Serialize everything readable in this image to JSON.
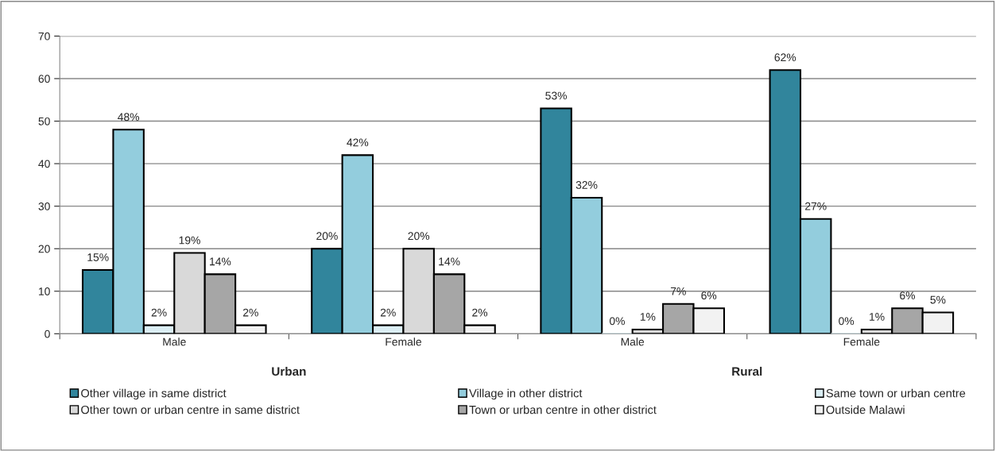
{
  "chart_data": {
    "type": "bar",
    "categories": [
      "Male",
      "Female",
      "Male",
      "Female"
    ],
    "annotations": [
      "Urban",
      "Rural"
    ],
    "series": [
      {
        "name": "Other village in same district",
        "color": "#31859c",
        "values": [
          15,
          20,
          53,
          62
        ],
        "value_labels": [
          "15%",
          "20%",
          "53%",
          "62%"
        ]
      },
      {
        "name": "Village in other district",
        "color": "#93cddd",
        "values": [
          48,
          42,
          32,
          27
        ],
        "value_labels": [
          "48%",
          "42%",
          "32%",
          "27%"
        ]
      },
      {
        "name": "Same town or urban centre",
        "color": "#dbeef4",
        "values": [
          2,
          2,
          0,
          0
        ],
        "value_labels": [
          "2%",
          "2%",
          "0%",
          "0%"
        ]
      },
      {
        "name": "Other town or urban centre in same district",
        "color": "#d9d9d9",
        "values": [
          19,
          20,
          1,
          1
        ],
        "value_labels": [
          "19%",
          "20%",
          "1%",
          "1%"
        ]
      },
      {
        "name": "Town or urban centre in other district",
        "color": "#a6a6a6",
        "values": [
          14,
          14,
          7,
          6
        ],
        "value_labels": [
          "14%",
          "14%",
          "7%",
          "6%"
        ]
      },
      {
        "name": "Outside Malawi",
        "color": "#f2f2f2",
        "values": [
          2,
          2,
          6,
          5
        ],
        "value_labels": [
          "2%",
          "2%",
          "6%",
          "5%"
        ]
      }
    ],
    "ylim": [
      0,
      70
    ],
    "yticks": [
      0,
      10,
      20,
      30,
      40,
      50,
      60,
      70
    ],
    "grid": "y",
    "legend": "bottom"
  }
}
